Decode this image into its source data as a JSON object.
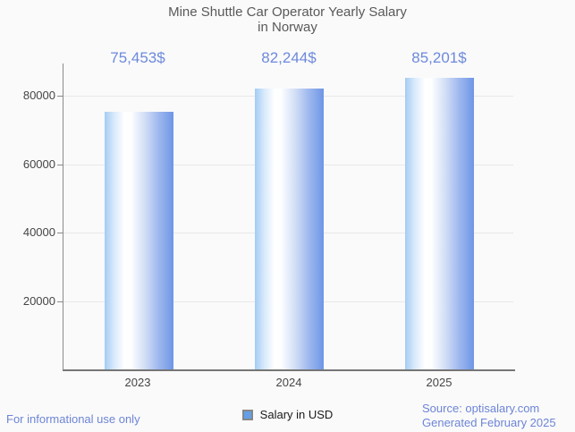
{
  "chart_data": {
    "type": "bar",
    "title": "Mine Shuttle Car Operator Yearly Salary in Norway",
    "title_lines": [
      "Mine Shuttle Car Operator Yearly Salary",
      "in Norway"
    ],
    "categories": [
      "2023",
      "2024",
      "2025"
    ],
    "series": [
      {
        "name": "Salary in USD",
        "values": [
          75453,
          82244,
          85201
        ]
      }
    ],
    "value_labels": [
      "75,453$",
      "82,244$",
      "85,201$"
    ],
    "ylim": [
      0,
      89500
    ],
    "yticks": [
      20000,
      40000,
      60000,
      80000
    ],
    "ytick_labels": [
      "20000",
      "40000",
      "60000",
      "80000"
    ],
    "grid": true,
    "legend_position": "bottom",
    "bar_gradient": [
      "#a4ccf4",
      "#ffffff",
      "#6e96e6"
    ]
  },
  "legend": {
    "label": "Salary in USD",
    "swatch_fill": "#63a0e8",
    "swatch_border": "#888888"
  },
  "footer": {
    "left": "For informational use only",
    "source": "Source: optisalary.com",
    "generated": "Generated February 2025"
  },
  "colors": {
    "accent_blue": "#6d89dc",
    "footer_blue": "#6d85d6",
    "title_gray": "#58595b",
    "axis_text": "#454545",
    "gridline": "#e8e8e8",
    "axis_line": "#8a8a8a",
    "background": "#fafafa"
  }
}
